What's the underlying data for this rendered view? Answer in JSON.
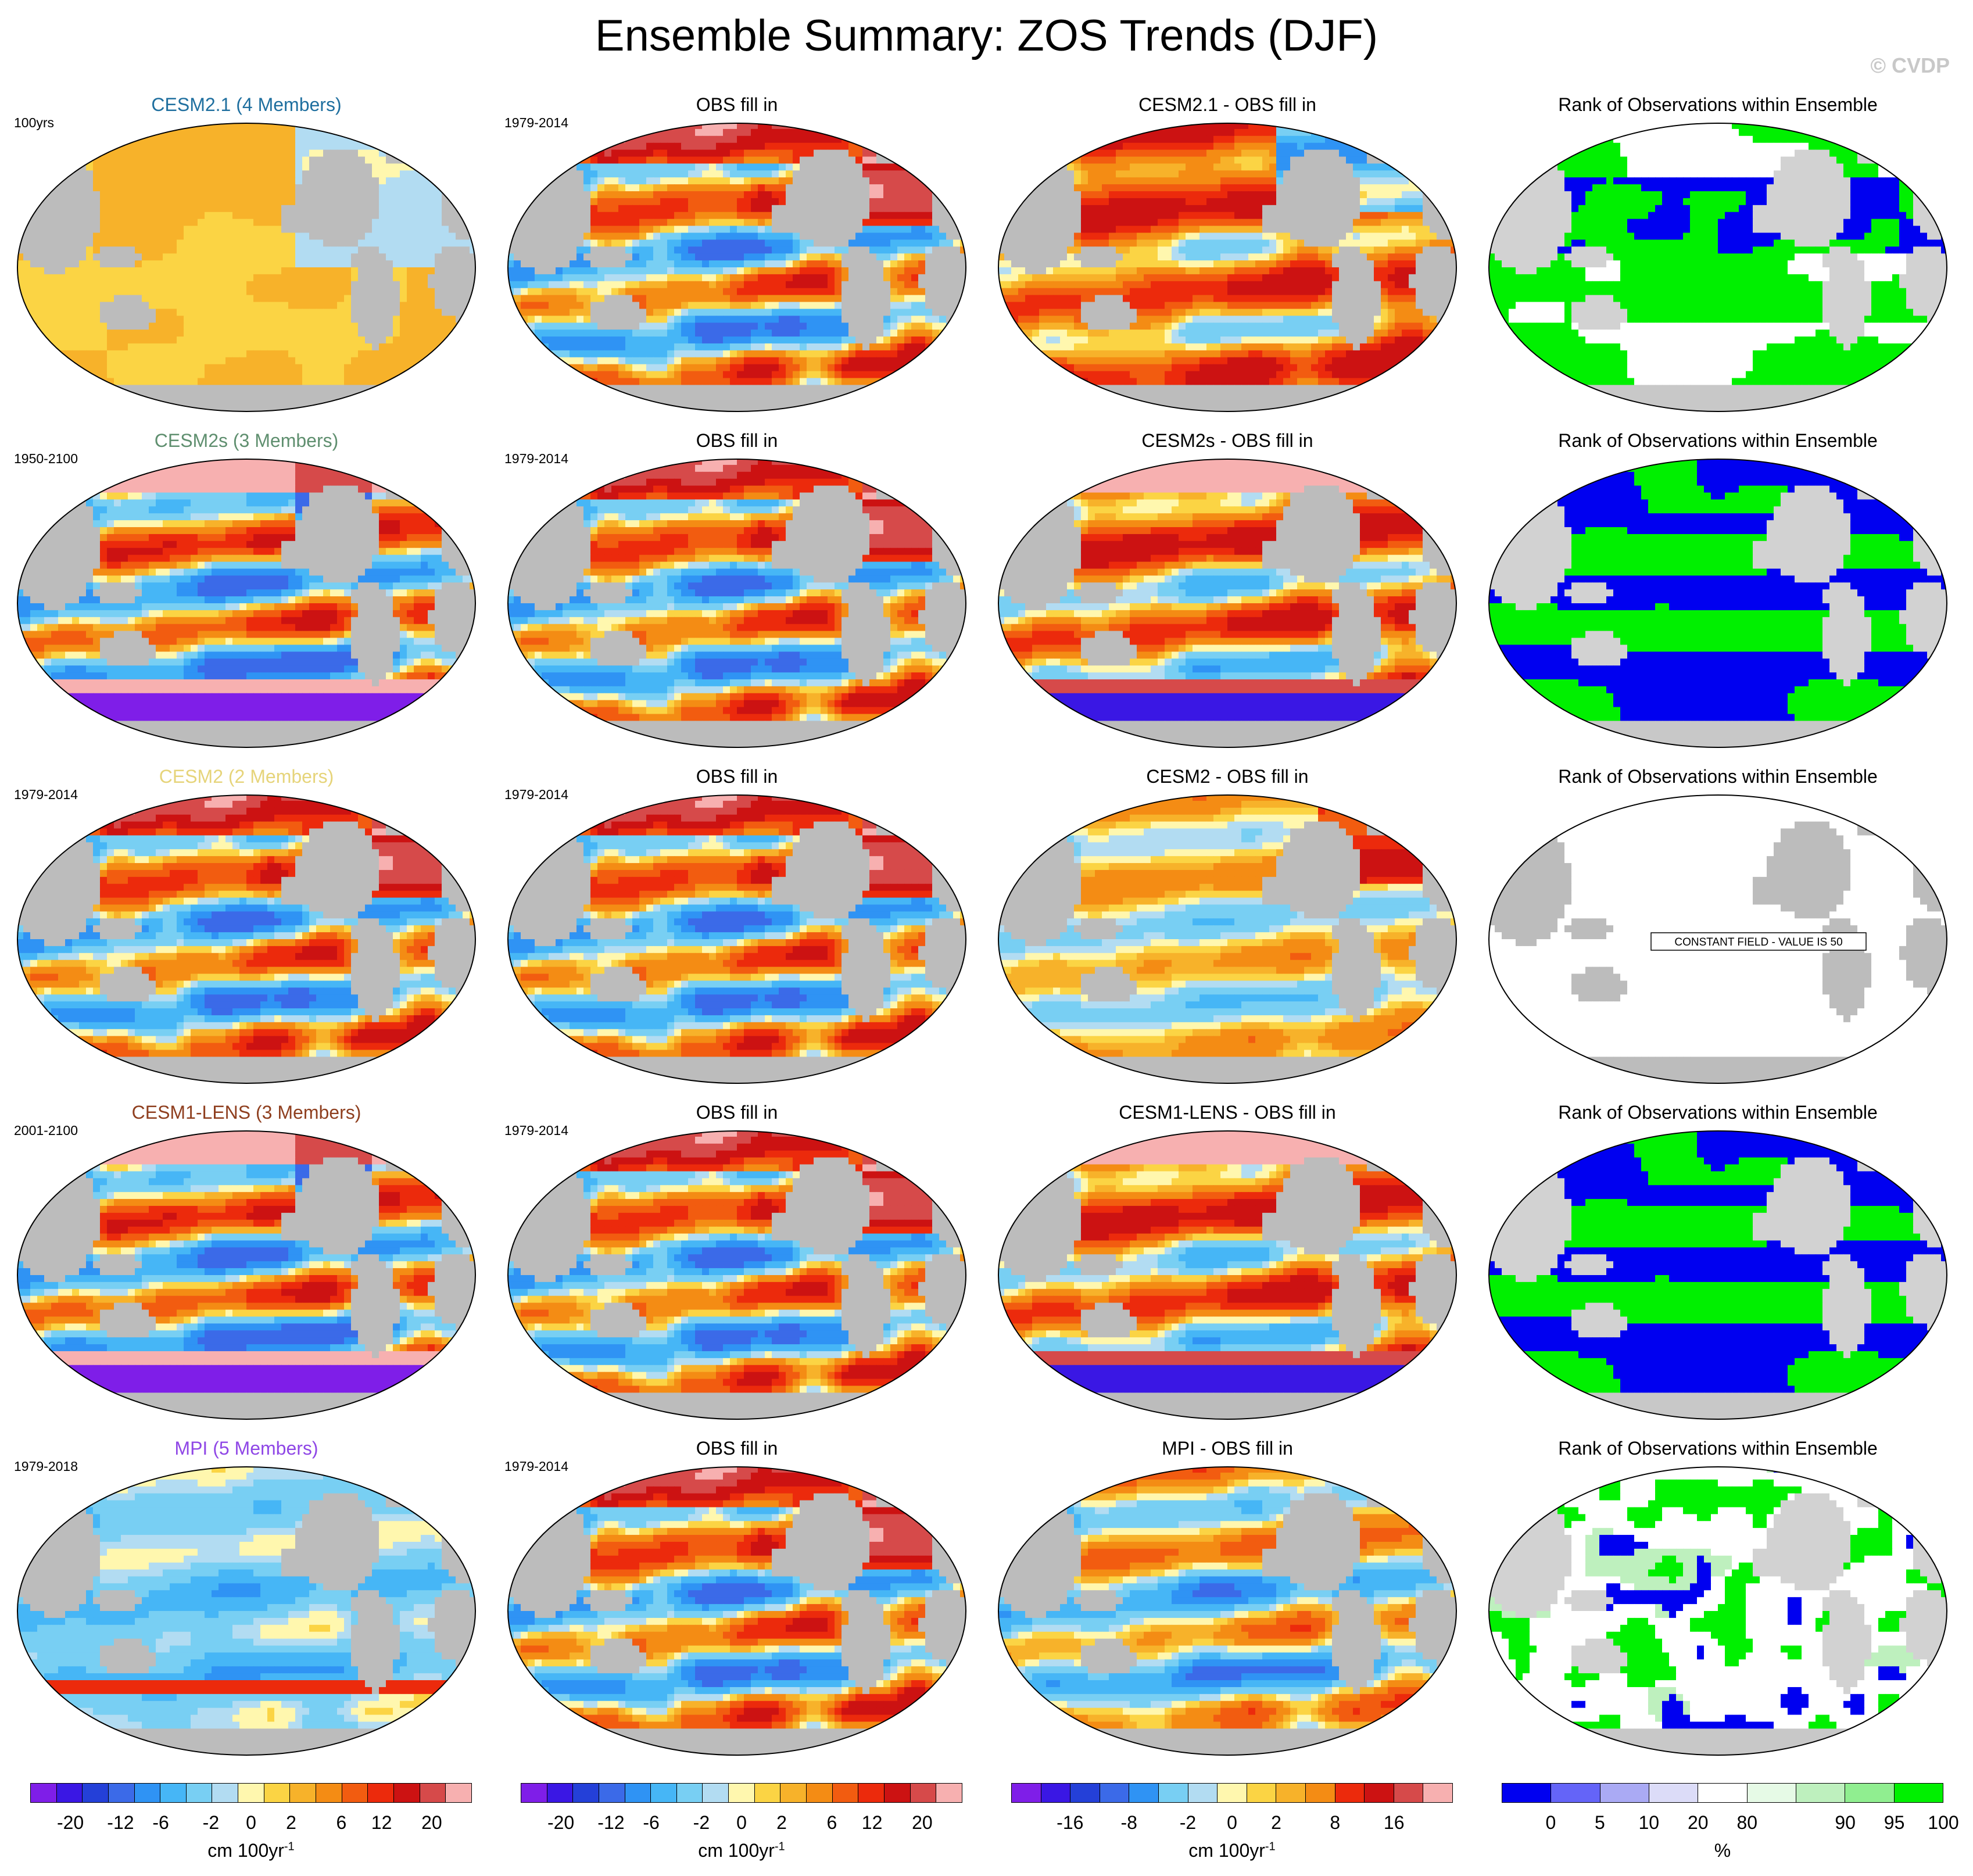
{
  "title": "Ensemble Summary: ZOS Trends (DJF)",
  "watermark": "© CVDP",
  "colors": {
    "land": "#bcbcbc",
    "antarctica_land": "#c8c8c8",
    "diverging": [
      "#7f1ee8",
      "#3a17e4",
      "#2440d8",
      "#3b6ae8",
      "#2f93f4",
      "#46b6f6",
      "#78cff3",
      "#b2dcf2",
      "#fff7ae",
      "#fbd444",
      "#f7b22a",
      "#f48c14",
      "#f25c10",
      "#ec2a0c",
      "#cc1212",
      "#d64a4a",
      "#f7b0b0"
    ],
    "rank": [
      "#0000f0",
      "#6464f8",
      "#aaaaf4",
      "#dcdcf8",
      "#ffffff",
      "#e6fae6",
      "#bef0be",
      "#90ee90",
      "#00f000"
    ],
    "title_colors": {
      "cesm21": "#1f6f9f",
      "cesm2s": "#5f8f6f",
      "cesm2": "#e6d47a",
      "cesm1lens": "#8f3f1f",
      "mpi": "#8f47e6"
    }
  },
  "rows": [
    {
      "model": {
        "title": "CESM2.1 (4 Members)",
        "period": "100yrs",
        "pattern": "cesm21",
        "color": "#1f6f9f"
      },
      "obs": {
        "title": "OBS fill in",
        "period": "1979-2014",
        "pattern": "obs"
      },
      "diff": {
        "title": "CESM2.1 - OBS fill in",
        "pattern": "diff21"
      },
      "rank": {
        "title": "Rank of Observations within Ensemble",
        "pattern": "rank1"
      }
    },
    {
      "model": {
        "title": "CESM2s (3 Members)",
        "period": "1950-2100",
        "pattern": "future",
        "color": "#5f8f6f"
      },
      "obs": {
        "title": "OBS fill in",
        "period": "1979-2014",
        "pattern": "obs"
      },
      "diff": {
        "title": "CESM2s - OBS fill in",
        "pattern": "difffuture"
      },
      "rank": {
        "title": "Rank of Observations within Ensemble",
        "pattern": "rank2"
      }
    },
    {
      "model": {
        "title": "CESM2 (2 Members)",
        "period": "1979-2014",
        "pattern": "obs",
        "color": "#e6d47a"
      },
      "obs": {
        "title": "OBS fill in",
        "period": "1979-2014",
        "pattern": "obs"
      },
      "diff": {
        "title": "CESM2 - OBS fill in",
        "pattern": "diffsmall"
      },
      "rank": {
        "title": "Rank of Observations within Ensemble",
        "pattern": "constant",
        "constant_label": "CONSTANT FIELD - VALUE IS 50"
      }
    },
    {
      "model": {
        "title": "CESM1-LENS (3 Members)",
        "period": "2001-2100",
        "pattern": "future",
        "color": "#8f3f1f"
      },
      "obs": {
        "title": "OBS fill in",
        "period": "1979-2014",
        "pattern": "obs"
      },
      "diff": {
        "title": "CESM1-LENS - OBS fill in",
        "pattern": "difffuture"
      },
      "rank": {
        "title": "Rank of Observations within Ensemble",
        "pattern": "rank2"
      }
    },
    {
      "model": {
        "title": "MPI (5 Members)",
        "period": "1979-2018",
        "pattern": "mpi",
        "color": "#8f47e6"
      },
      "obs": {
        "title": "OBS fill in",
        "period": "1979-2014",
        "pattern": "obs"
      },
      "diff": {
        "title": "MPI - OBS fill in",
        "pattern": "diffmpi"
      },
      "rank": {
        "title": "Rank of Observations within Ensemble",
        "pattern": "rank5"
      }
    }
  ],
  "chart_data": {
    "type": "heatmap",
    "projection": "robinson-like global map, Pacific-centered",
    "panel_titles": [
      "CESM2.1 (4 Members)",
      "OBS fill in",
      "CESM2.1 - OBS fill in",
      "Rank of Observations within Ensemble"
    ],
    "colorbars": [
      {
        "name": "model-trend",
        "ticks": [
          "-20",
          "-12",
          "-6",
          "-2",
          "0",
          "2",
          "6",
          "12",
          "20"
        ],
        "units": "cm 100yr",
        "units_exp": "-1",
        "levels": [
          -20,
          -16,
          -12,
          -8,
          -6,
          -4,
          -2,
          -1,
          0,
          1,
          2,
          4,
          6,
          8,
          12,
          16,
          20
        ]
      },
      {
        "name": "obs-trend",
        "ticks": [
          "-20",
          "-12",
          "-6",
          "-2",
          "0",
          "2",
          "6",
          "12",
          "20"
        ],
        "units": "cm 100yr",
        "units_exp": "-1",
        "levels": [
          -20,
          -16,
          -12,
          -8,
          -6,
          -4,
          -2,
          -1,
          0,
          1,
          2,
          4,
          6,
          8,
          12,
          16,
          20
        ]
      },
      {
        "name": "difference",
        "ticks": [
          "-16",
          "-8",
          "-2",
          "0",
          "2",
          "8",
          "16"
        ],
        "units": "cm 100yr",
        "units_exp": "-1",
        "levels": [
          -16,
          -12,
          -8,
          -4,
          -2,
          -1,
          0,
          1,
          2,
          4,
          8,
          12,
          16
        ]
      },
      {
        "name": "rank",
        "ticks": [
          "0",
          "5",
          "10",
          "20",
          "80",
          "90",
          "95",
          "100"
        ],
        "units": "%",
        "units_exp": "",
        "levels": [
          0,
          5,
          10,
          20,
          80,
          90,
          95,
          100
        ]
      }
    ]
  }
}
